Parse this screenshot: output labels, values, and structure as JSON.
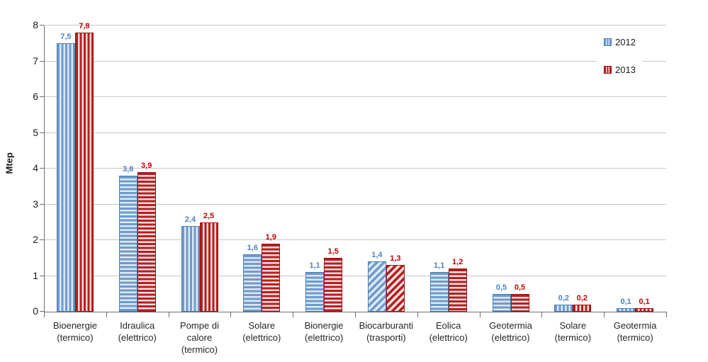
{
  "chart_data": {
    "type": "bar",
    "title": "",
    "xlabel": "",
    "ylabel": "Mtep",
    "ylim": [
      0,
      8
    ],
    "yticks": [
      "0",
      "1",
      "2",
      "3",
      "4",
      "5",
      "6",
      "7",
      "8"
    ],
    "grid": true,
    "legend_position": "top-right-inside",
    "decimal_separator": ",",
    "categories": [
      {
        "label": "Bioenergie\n(termico)",
        "pattern": "vertical"
      },
      {
        "label": "Idraulica\n(elettrico)",
        "pattern": "horizontal"
      },
      {
        "label": "Pompe di\ncalore\n(termico)",
        "pattern": "vertical"
      },
      {
        "label": "Solare\n(elettrico)",
        "pattern": "horizontal"
      },
      {
        "label": "Bionergie\n(elettrico)",
        "pattern": "horizontal"
      },
      {
        "label": "Biocarburanti\n(trasporti)",
        "pattern": "diagonal"
      },
      {
        "label": "Eolica\n(elettrico)",
        "pattern": "horizontal"
      },
      {
        "label": "Geotermia\n(elettrico)",
        "pattern": "horizontal"
      },
      {
        "label": "Solare\n(termico)",
        "pattern": "vertical"
      },
      {
        "label": "Geotermia\n(termico)",
        "pattern": "vertical"
      }
    ],
    "series": [
      {
        "name": "2012",
        "values": [
          7.5,
          3.8,
          2.4,
          1.6,
          1.1,
          1.4,
          1.1,
          0.5,
          0.2,
          0.1
        ],
        "value_labels": [
          "7,5",
          "3,8",
          "2,4",
          "1,6",
          "1,1",
          "1,4",
          "1,1",
          "0,5",
          "0,2",
          "0,1"
        ],
        "colors": {
          "stripe": "#6E9BCB",
          "stripe_light": "#DDE8F4",
          "border": "#4A7EBB",
          "label": "#4F81BD"
        }
      },
      {
        "name": "2013",
        "values": [
          7.8,
          3.9,
          2.5,
          1.9,
          1.5,
          1.3,
          1.2,
          0.5,
          0.2,
          0.1
        ],
        "value_labels": [
          "7,8",
          "3,9",
          "2,5",
          "1,9",
          "1,5",
          "1,3",
          "1,2",
          "0,5",
          "0,2",
          "0,1"
        ],
        "colors": {
          "stripe": "#B61F1F",
          "stripe_light": "#F5DFDF",
          "border": "#9A1313",
          "label": "#C00000"
        }
      }
    ]
  },
  "colors": {
    "gridline": "#C6C6C6",
    "axis": "#6E6E6E",
    "text": "#1A1A1A"
  }
}
